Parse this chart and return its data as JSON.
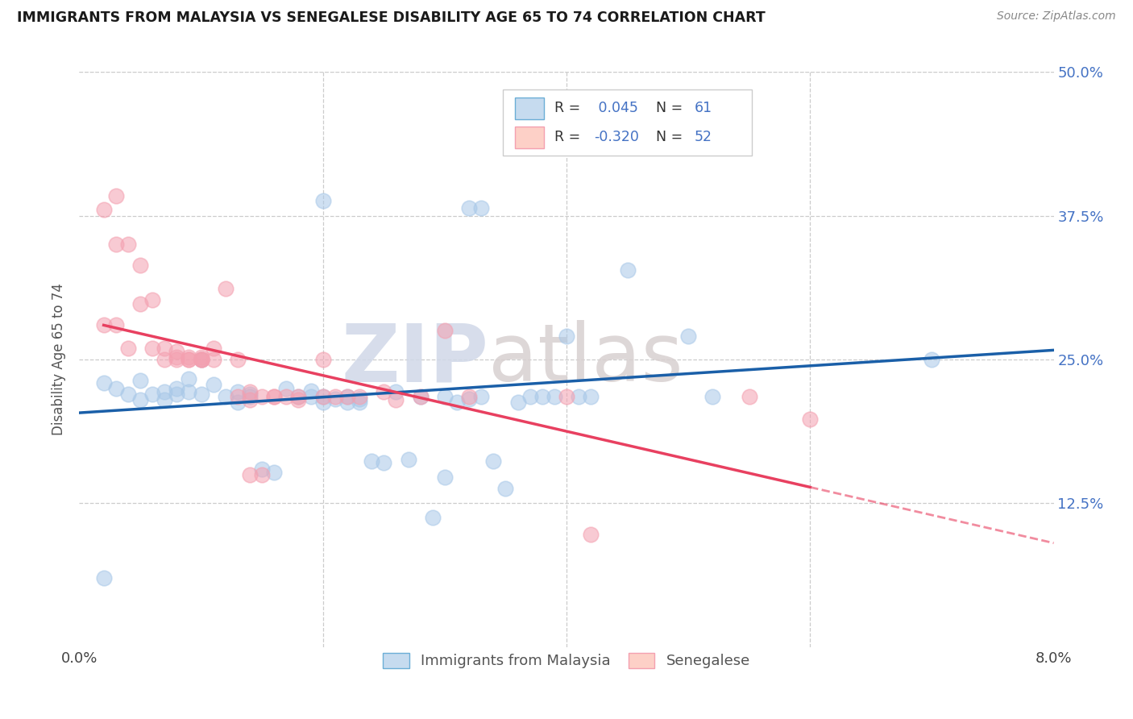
{
  "title": "IMMIGRANTS FROM MALAYSIA VS SENEGALESE DISABILITY AGE 65 TO 74 CORRELATION CHART",
  "source": "Source: ZipAtlas.com",
  "ylabel": "Disability Age 65 to 74",
  "legend_labels": [
    "Immigrants from Malaysia",
    "Senegalese"
  ],
  "r_malaysia": "0.045",
  "n_malaysia": "61",
  "r_senegal": "-0.320",
  "n_senegal": "52",
  "malaysia_color": "#a8c8e8",
  "senegal_color": "#f4a0b0",
  "trend_malaysia_color": "#1a5fa8",
  "trend_senegal_color": "#e84060",
  "text_color": "#4472c4",
  "label_color": "#4472c4",
  "malaysia_points": [
    [
      0.002,
      0.23
    ],
    [
      0.003,
      0.225
    ],
    [
      0.004,
      0.22
    ],
    [
      0.005,
      0.232
    ],
    [
      0.005,
      0.215
    ],
    [
      0.006,
      0.22
    ],
    [
      0.007,
      0.222
    ],
    [
      0.007,
      0.215
    ],
    [
      0.008,
      0.225
    ],
    [
      0.008,
      0.22
    ],
    [
      0.009,
      0.222
    ],
    [
      0.009,
      0.233
    ],
    [
      0.01,
      0.25
    ],
    [
      0.01,
      0.22
    ],
    [
      0.011,
      0.228
    ],
    [
      0.012,
      0.218
    ],
    [
      0.013,
      0.213
    ],
    [
      0.013,
      0.222
    ],
    [
      0.014,
      0.22
    ],
    [
      0.014,
      0.218
    ],
    [
      0.015,
      0.155
    ],
    [
      0.016,
      0.152
    ],
    [
      0.017,
      0.225
    ],
    [
      0.018,
      0.218
    ],
    [
      0.019,
      0.218
    ],
    [
      0.019,
      0.223
    ],
    [
      0.02,
      0.218
    ],
    [
      0.02,
      0.213
    ],
    [
      0.021,
      0.216
    ],
    [
      0.022,
      0.218
    ],
    [
      0.022,
      0.213
    ],
    [
      0.023,
      0.216
    ],
    [
      0.023,
      0.213
    ],
    [
      0.024,
      0.162
    ],
    [
      0.025,
      0.16
    ],
    [
      0.026,
      0.222
    ],
    [
      0.027,
      0.163
    ],
    [
      0.028,
      0.218
    ],
    [
      0.029,
      0.113
    ],
    [
      0.03,
      0.218
    ],
    [
      0.031,
      0.213
    ],
    [
      0.032,
      0.216
    ],
    [
      0.033,
      0.218
    ],
    [
      0.034,
      0.162
    ],
    [
      0.035,
      0.138
    ],
    [
      0.036,
      0.213
    ],
    [
      0.037,
      0.218
    ],
    [
      0.038,
      0.218
    ],
    [
      0.039,
      0.218
    ],
    [
      0.04,
      0.27
    ],
    [
      0.041,
      0.218
    ],
    [
      0.042,
      0.218
    ],
    [
      0.02,
      0.388
    ],
    [
      0.032,
      0.382
    ],
    [
      0.033,
      0.382
    ],
    [
      0.045,
      0.328
    ],
    [
      0.05,
      0.27
    ],
    [
      0.052,
      0.218
    ],
    [
      0.07,
      0.25
    ],
    [
      0.002,
      0.06
    ],
    [
      0.03,
      0.148
    ]
  ],
  "senegal_points": [
    [
      0.002,
      0.28
    ],
    [
      0.003,
      0.28
    ],
    [
      0.003,
      0.35
    ],
    [
      0.004,
      0.35
    ],
    [
      0.004,
      0.26
    ],
    [
      0.005,
      0.332
    ],
    [
      0.005,
      0.298
    ],
    [
      0.006,
      0.302
    ],
    [
      0.006,
      0.26
    ],
    [
      0.007,
      0.25
    ],
    [
      0.007,
      0.26
    ],
    [
      0.008,
      0.252
    ],
    [
      0.008,
      0.25
    ],
    [
      0.008,
      0.257
    ],
    [
      0.009,
      0.25
    ],
    [
      0.009,
      0.252
    ],
    [
      0.009,
      0.25
    ],
    [
      0.01,
      0.25
    ],
    [
      0.01,
      0.252
    ],
    [
      0.01,
      0.25
    ],
    [
      0.01,
      0.25
    ],
    [
      0.011,
      0.25
    ],
    [
      0.011,
      0.26
    ],
    [
      0.012,
      0.312
    ],
    [
      0.013,
      0.25
    ],
    [
      0.013,
      0.218
    ],
    [
      0.014,
      0.222
    ],
    [
      0.014,
      0.15
    ],
    [
      0.014,
      0.215
    ],
    [
      0.015,
      0.15
    ],
    [
      0.015,
      0.218
    ],
    [
      0.016,
      0.218
    ],
    [
      0.016,
      0.218
    ],
    [
      0.017,
      0.218
    ],
    [
      0.018,
      0.218
    ],
    [
      0.018,
      0.215
    ],
    [
      0.02,
      0.218
    ],
    [
      0.02,
      0.25
    ],
    [
      0.021,
      0.218
    ],
    [
      0.022,
      0.218
    ],
    [
      0.023,
      0.218
    ],
    [
      0.025,
      0.222
    ],
    [
      0.026,
      0.215
    ],
    [
      0.028,
      0.218
    ],
    [
      0.03,
      0.275
    ],
    [
      0.032,
      0.218
    ],
    [
      0.04,
      0.218
    ],
    [
      0.042,
      0.098
    ],
    [
      0.055,
      0.218
    ],
    [
      0.06,
      0.198
    ],
    [
      0.002,
      0.38
    ],
    [
      0.003,
      0.392
    ]
  ],
  "xmin": 0.0,
  "xmax": 0.08,
  "ymin": 0.0,
  "ymax": 0.5,
  "ytick_vals": [
    0.125,
    0.25,
    0.375,
    0.5
  ],
  "ytick_labels": [
    "12.5%",
    "25.0%",
    "37.5%",
    "50.0%"
  ],
  "xtick_vals": [
    0.0,
    0.02,
    0.04,
    0.06,
    0.08
  ],
  "xtick_labels": [
    "0.0%",
    "",
    "",
    "",
    "8.0%"
  ],
  "watermark_part1": "ZIP",
  "watermark_part2": "atlas"
}
